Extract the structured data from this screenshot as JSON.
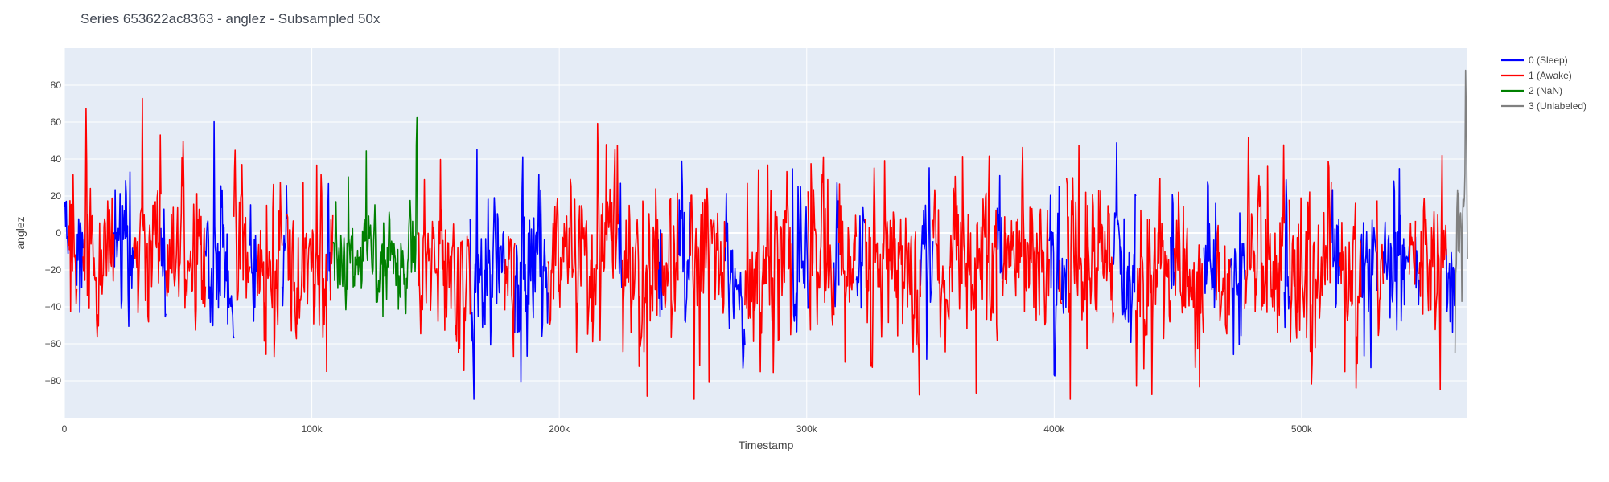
{
  "chart_data": {
    "type": "line",
    "title": "Series 653622ac8363 - anglez - Subsampled 50x",
    "xlabel": "Timestamp",
    "ylabel": "anglez",
    "xlim": [
      0,
      567000
    ],
    "ylim": [
      -100,
      100
    ],
    "x_ticks": [
      {
        "value": 0,
        "label": "0"
      },
      {
        "value": 100000,
        "label": "100k"
      },
      {
        "value": 200000,
        "label": "200k"
      },
      {
        "value": 300000,
        "label": "300k"
      },
      {
        "value": 400000,
        "label": "400k"
      },
      {
        "value": 500000,
        "label": "500k"
      }
    ],
    "y_ticks": [
      {
        "value": -80,
        "label": "−80"
      },
      {
        "value": -60,
        "label": "−60"
      },
      {
        "value": -40,
        "label": "−40"
      },
      {
        "value": -20,
        "label": "−20"
      },
      {
        "value": 0,
        "label": "0"
      },
      {
        "value": 20,
        "label": "20"
      },
      {
        "value": 40,
        "label": "40"
      },
      {
        "value": 60,
        "label": "60"
      },
      {
        "value": 80,
        "label": "80"
      }
    ],
    "grid": true,
    "legend_position": "top-right",
    "series": [
      {
        "name": "0 (Sleep)",
        "color": "#0000ff",
        "segments": [
          [
            0,
            1500
          ],
          [
            5000,
            7500
          ],
          [
            20000,
            28000
          ],
          [
            39000,
            41000
          ],
          [
            57000,
            68500
          ],
          [
            75000,
            78000
          ],
          [
            88000,
            90000
          ],
          [
            106000,
            107500
          ],
          [
            164000,
            178000
          ],
          [
            182000,
            195500
          ],
          [
            224000,
            225500
          ],
          [
            240000,
            241500
          ],
          [
            248000,
            253000
          ],
          [
            267000,
            275000
          ],
          [
            294000,
            300500
          ],
          [
            311000,
            313000
          ],
          [
            320000,
            323500
          ],
          [
            346000,
            351000
          ],
          [
            377000,
            379000
          ],
          [
            398000,
            402000
          ],
          [
            403000,
            405000
          ],
          [
            424000,
            433000
          ],
          [
            447000,
            448500
          ],
          [
            460500,
            465500
          ],
          [
            471000,
            477000
          ],
          [
            493000,
            495000
          ],
          [
            512000,
            515500
          ],
          [
            524000,
            530500
          ],
          [
            533000,
            543500
          ],
          [
            546000,
            547500
          ],
          [
            558500,
            562000
          ]
        ],
        "anchors_x": [
          0,
          10000,
          20000,
          30000,
          40000,
          50000,
          60000,
          70000,
          80000,
          90000,
          100000,
          110000,
          120000,
          130000,
          140000,
          150000,
          160000,
          170000,
          180000,
          190000,
          200000,
          210000,
          220000,
          230000,
          240000,
          250000,
          260000,
          270000,
          280000,
          290000,
          300000,
          310000,
          320000,
          330000,
          340000,
          350000,
          360000,
          370000,
          380000,
          390000,
          400000,
          410000,
          420000,
          430000,
          440000,
          450000,
          460000,
          470000,
          480000,
          490000,
          500000,
          510000,
          520000,
          530000,
          540000,
          550000,
          560000,
          567000
        ],
        "anchors_y": [
          -8,
          -12,
          -10,
          -20,
          -5,
          -15,
          -20,
          -10,
          -25,
          -10,
          -22,
          -15,
          -15,
          -20,
          -25,
          -15,
          -30,
          -18,
          -12,
          -20,
          -25,
          -15,
          -10,
          -18,
          -22,
          -15,
          -10,
          -20,
          -22,
          -8,
          -15,
          -20,
          -8,
          -22,
          -15,
          -10,
          -18,
          -20,
          -8,
          -15,
          -22,
          -12,
          -10,
          -20,
          -25,
          -12,
          -18,
          -22,
          -12,
          -15,
          -20,
          -10,
          -22,
          -18,
          -12,
          -15,
          -20,
          -15
        ],
        "amplitude": 45
      },
      {
        "name": "1 (Awake)",
        "color": "#ff0000",
        "segments": [
          [
            1500,
            5000
          ],
          [
            7500,
            20000
          ],
          [
            28000,
            39000
          ],
          [
            41000,
            57000
          ],
          [
            68500,
            75000
          ],
          [
            78000,
            88000
          ],
          [
            90000,
            106000
          ],
          [
            107500,
            108500
          ],
          [
            143000,
            164000
          ],
          [
            178000,
            182000
          ],
          [
            195500,
            224000
          ],
          [
            225500,
            240000
          ],
          [
            241500,
            248000
          ],
          [
            253000,
            267000
          ],
          [
            275000,
            294000
          ],
          [
            300500,
            311000
          ],
          [
            313000,
            320000
          ],
          [
            323500,
            346000
          ],
          [
            351000,
            377000
          ],
          [
            379000,
            398000
          ],
          [
            402000,
            403000
          ],
          [
            405000,
            424000
          ],
          [
            433000,
            447000
          ],
          [
            448500,
            460500
          ],
          [
            465500,
            471000
          ],
          [
            477000,
            493000
          ],
          [
            495000,
            512000
          ],
          [
            515500,
            524000
          ],
          [
            530500,
            533000
          ],
          [
            543500,
            546000
          ],
          [
            547500,
            558500
          ]
        ],
        "anchors_x": [
          0,
          10000,
          20000,
          30000,
          40000,
          50000,
          60000,
          70000,
          80000,
          90000,
          100000,
          110000,
          120000,
          130000,
          140000,
          150000,
          160000,
          170000,
          180000,
          190000,
          200000,
          210000,
          220000,
          230000,
          240000,
          250000,
          260000,
          270000,
          280000,
          290000,
          300000,
          310000,
          320000,
          330000,
          340000,
          350000,
          360000,
          370000,
          380000,
          390000,
          400000,
          410000,
          420000,
          430000,
          440000,
          450000,
          460000,
          470000,
          480000,
          490000,
          500000,
          510000,
          520000,
          530000,
          540000,
          550000,
          560000,
          567000
        ],
        "anchors_y": [
          -8,
          -12,
          -10,
          -20,
          -5,
          -15,
          -20,
          -10,
          -25,
          -10,
          -22,
          -15,
          -15,
          -20,
          -25,
          -15,
          -30,
          -18,
          -12,
          -20,
          -25,
          -15,
          -10,
          -18,
          -22,
          -15,
          -10,
          -20,
          -22,
          -8,
          -15,
          -20,
          -8,
          -22,
          -15,
          -10,
          -18,
          -20,
          -8,
          -15,
          -22,
          -12,
          -10,
          -20,
          -25,
          -12,
          -18,
          -22,
          -12,
          -15,
          -20,
          -10,
          -22,
          -18,
          -12,
          -15,
          -20,
          -15
        ],
        "amplitude": 48
      },
      {
        "name": "2 (NaN)",
        "color": "#008000",
        "segments": [
          [
            108500,
            143000
          ]
        ],
        "anchors_x": [
          108500,
          115000,
          120000,
          123000,
          125000,
          130000,
          135000,
          140000,
          143000
        ],
        "anchors_y": [
          -10,
          -15,
          -20,
          10,
          -20,
          -15,
          -20,
          -10,
          -15
        ],
        "amplitude": 32
      },
      {
        "name": "3 (Unlabeled)",
        "color": "#808080",
        "segments": [
          [
            562000,
            567000
          ]
        ],
        "anchors_x": [
          562000,
          564000,
          567000
        ],
        "anchors_y": [
          -5,
          0,
          -5
        ],
        "amplitude": 45
      }
    ]
  }
}
